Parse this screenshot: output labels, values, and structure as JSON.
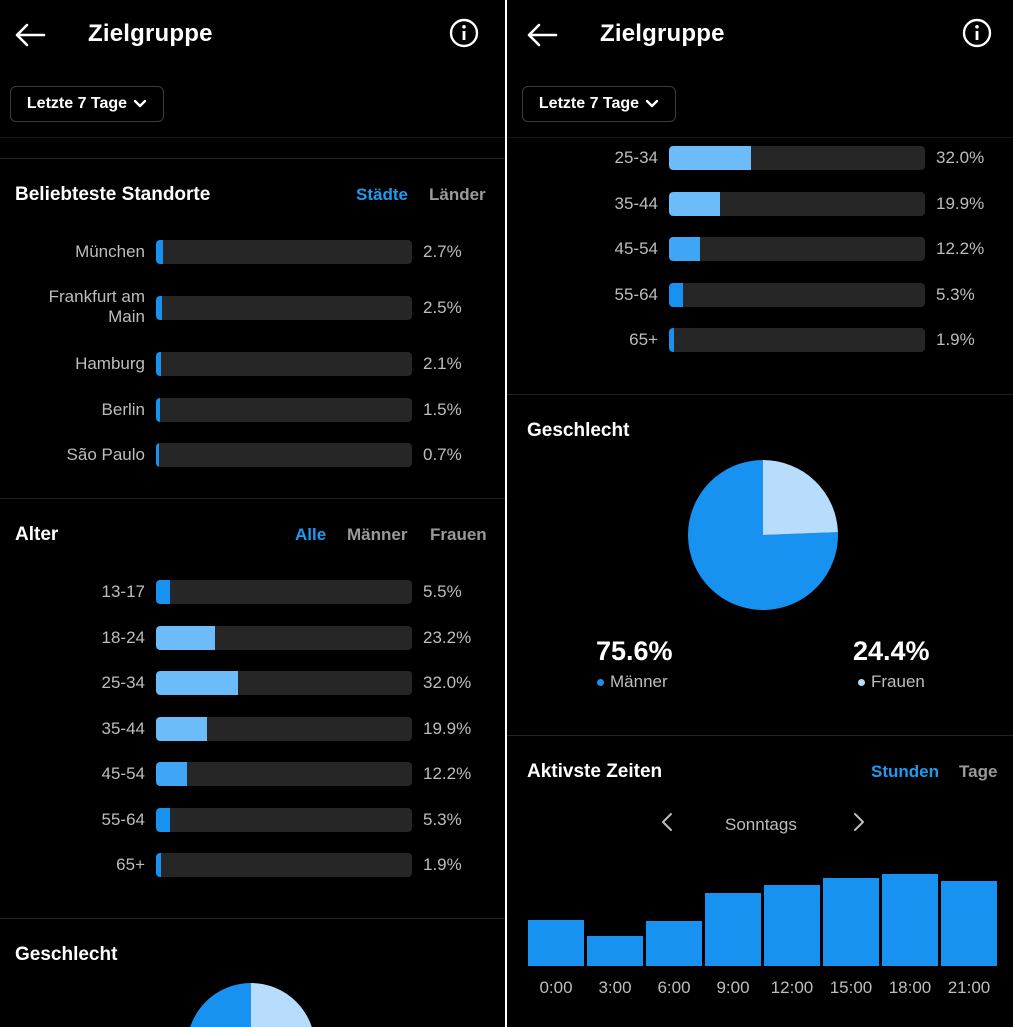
{
  "header": {
    "title": "Zielgruppe",
    "back_icon": "arrow-left-icon",
    "info_icon": "info-circle-icon"
  },
  "period": {
    "label": "Letzte 7 Tage",
    "icon": "chevron-down-icon"
  },
  "locations": {
    "title": "Beliebteste Standorte",
    "tabs": [
      {
        "label": "Städte",
        "active": true
      },
      {
        "label": "Länder",
        "active": false
      }
    ],
    "rows": [
      {
        "label": "München",
        "pct_text": "2.7%",
        "value": 2.7
      },
      {
        "label": "Frankfurt am Main",
        "pct_text": "2.5%",
        "value": 2.5
      },
      {
        "label": "Hamburg",
        "pct_text": "2.1%",
        "value": 2.1
      },
      {
        "label": "Berlin",
        "pct_text": "1.5%",
        "value": 1.5
      },
      {
        "label": "São Paulo",
        "pct_text": "0.7%",
        "value": 0.7
      }
    ]
  },
  "age": {
    "title": "Alter",
    "tabs": [
      {
        "label": "Alle",
        "active": true
      },
      {
        "label": "Männer",
        "active": false
      },
      {
        "label": "Frauen",
        "active": false
      }
    ],
    "rows": [
      {
        "label": "13-17",
        "pct_text": "5.5%",
        "value": 5.5
      },
      {
        "label": "18-24",
        "pct_text": "23.2%",
        "value": 23.2
      },
      {
        "label": "25-34",
        "pct_text": "32.0%",
        "value": 32.0
      },
      {
        "label": "35-44",
        "pct_text": "19.9%",
        "value": 19.9
      },
      {
        "label": "45-54",
        "pct_text": "12.2%",
        "value": 12.2
      },
      {
        "label": "55-64",
        "pct_text": "5.3%",
        "value": 5.3
      },
      {
        "label": "65+",
        "pct_text": "1.9%",
        "value": 1.9
      }
    ]
  },
  "gender": {
    "title": "Geschlecht",
    "men": {
      "pct_text": "75.6%",
      "label": "Männer",
      "value": 75.6,
      "color": "#1792f0"
    },
    "women": {
      "pct_text": "24.4%",
      "label": "Frauen",
      "value": 24.4,
      "color": "#b7dcfc"
    }
  },
  "active_times": {
    "title": "Aktivste Zeiten",
    "tabs": [
      {
        "label": "Stunden",
        "active": true
      },
      {
        "label": "Tage",
        "active": false
      }
    ],
    "day": "Sonntags",
    "prev_icon": "chevron-left-icon",
    "next_icon": "chevron-right-icon"
  },
  "colors": {
    "accent": "#1e9bf0",
    "bar_light": "#6cbcf9",
    "bar_mid": "#3ea6f5",
    "bar_dark": "#1792f0",
    "track": "#262626"
  },
  "chart_data": {
    "type": "bar",
    "title": "Aktivste Zeiten",
    "categories": [
      "0:00",
      "3:00",
      "6:00",
      "9:00",
      "12:00",
      "15:00",
      "18:00",
      "21:00"
    ],
    "values": [
      46,
      30,
      45,
      73,
      81,
      88,
      92,
      85
    ],
    "ylim": [
      0,
      100
    ]
  }
}
